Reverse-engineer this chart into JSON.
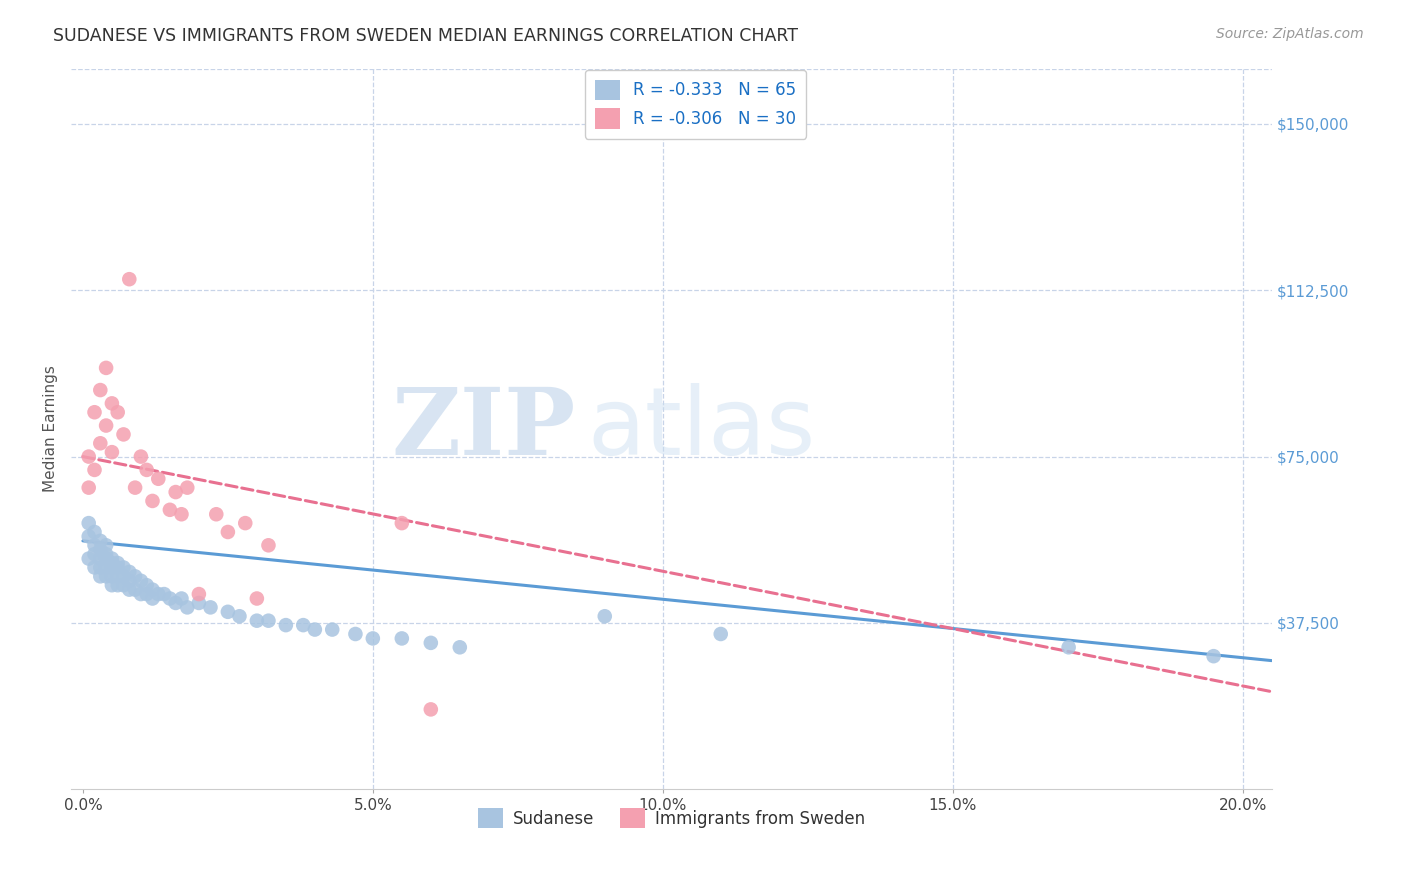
{
  "title": "SUDANESE VS IMMIGRANTS FROM SWEDEN MEDIAN EARNINGS CORRELATION CHART",
  "source": "Source: ZipAtlas.com",
  "xlabel_ticks": [
    "0.0%",
    "5.0%",
    "10.0%",
    "15.0%",
    "20.0%"
  ],
  "xlabel_tick_vals": [
    0.0,
    0.05,
    0.1,
    0.15,
    0.2
  ],
  "ylabel": "Median Earnings",
  "yaxis_labels": [
    "$37,500",
    "$75,000",
    "$112,500",
    "$150,000"
  ],
  "yaxis_vals": [
    37500,
    75000,
    112500,
    150000
  ],
  "ylim": [
    0,
    162500
  ],
  "xlim": [
    -0.002,
    0.205
  ],
  "watermark_zip": "ZIP",
  "watermark_atlas": "atlas",
  "legend_entry1": "R = -0.333   N = 65",
  "legend_entry2": "R = -0.306   N = 30",
  "legend_label1": "Sudanese",
  "legend_label2": "Immigrants from Sweden",
  "color_blue": "#a8c4e0",
  "color_pink": "#f4a0b0",
  "line_color_blue": "#5b9bd5",
  "line_color_pink": "#e87090",
  "sudanese_x": [
    0.001,
    0.001,
    0.001,
    0.002,
    0.002,
    0.002,
    0.002,
    0.003,
    0.003,
    0.003,
    0.003,
    0.003,
    0.004,
    0.004,
    0.004,
    0.004,
    0.004,
    0.005,
    0.005,
    0.005,
    0.005,
    0.005,
    0.006,
    0.006,
    0.006,
    0.006,
    0.007,
    0.007,
    0.007,
    0.008,
    0.008,
    0.008,
    0.009,
    0.009,
    0.01,
    0.01,
    0.011,
    0.011,
    0.012,
    0.012,
    0.013,
    0.014,
    0.015,
    0.016,
    0.017,
    0.018,
    0.02,
    0.022,
    0.025,
    0.027,
    0.03,
    0.032,
    0.035,
    0.038,
    0.04,
    0.043,
    0.047,
    0.05,
    0.055,
    0.06,
    0.065,
    0.09,
    0.11,
    0.17,
    0.195
  ],
  "sudanese_y": [
    57000,
    52000,
    60000,
    55000,
    50000,
    53000,
    58000,
    52000,
    54000,
    56000,
    50000,
    48000,
    52000,
    50000,
    53000,
    48000,
    55000,
    50000,
    52000,
    48000,
    51000,
    46000,
    50000,
    48000,
    51000,
    46000,
    50000,
    48000,
    46000,
    49000,
    47000,
    45000,
    48000,
    45000,
    47000,
    44000,
    46000,
    44000,
    45000,
    43000,
    44000,
    44000,
    43000,
    42000,
    43000,
    41000,
    42000,
    41000,
    40000,
    39000,
    38000,
    38000,
    37000,
    37000,
    36000,
    36000,
    35000,
    34000,
    34000,
    33000,
    32000,
    39000,
    35000,
    32000,
    30000
  ],
  "sweden_x": [
    0.001,
    0.001,
    0.002,
    0.002,
    0.003,
    0.003,
    0.004,
    0.004,
    0.005,
    0.005,
    0.006,
    0.007,
    0.008,
    0.009,
    0.01,
    0.011,
    0.012,
    0.013,
    0.015,
    0.016,
    0.017,
    0.018,
    0.02,
    0.023,
    0.025,
    0.028,
    0.03,
    0.032,
    0.055,
    0.06
  ],
  "sweden_y": [
    75000,
    68000,
    85000,
    72000,
    90000,
    78000,
    95000,
    82000,
    87000,
    76000,
    85000,
    80000,
    115000,
    68000,
    75000,
    72000,
    65000,
    70000,
    63000,
    67000,
    62000,
    68000,
    44000,
    62000,
    58000,
    60000,
    43000,
    55000,
    60000,
    18000
  ],
  "blue_line_x0": 0.0,
  "blue_line_y0": 56000,
  "blue_line_x1": 0.205,
  "blue_line_y1": 29000,
  "pink_line_x0": 0.0,
  "pink_line_y0": 75000,
  "pink_line_x1": 0.205,
  "pink_line_y1": 22000,
  "background_color": "#ffffff",
  "grid_color": "#c8d4e8"
}
